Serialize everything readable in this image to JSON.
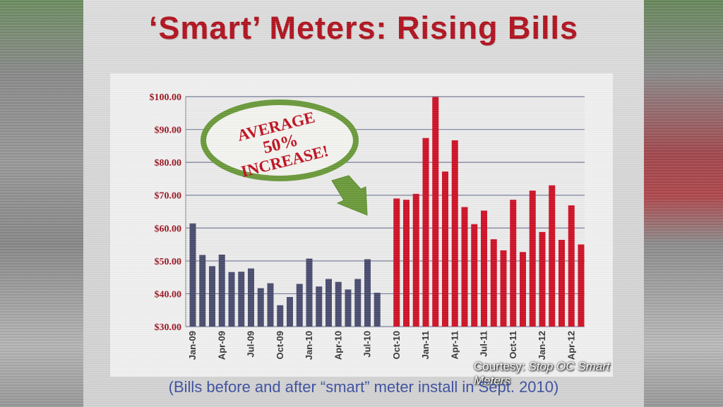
{
  "slide": {
    "title": "‘Smart’ Meters: Rising Bills",
    "caption": "(Bills before and after “smart” meter install in Sept. 2010)",
    "courtesy_label": "Courtesy:",
    "courtesy_source": "Stop OC Smart Meters"
  },
  "callout": {
    "line1": "AVERAGE",
    "line2": "50%",
    "line3": "INCREASE!"
  },
  "colors": {
    "before_bar": "#4a4c6e",
    "after_bar": "#cf1126",
    "axis_label": "#9a1420",
    "callout_ring": "#6a9a3a",
    "callout_text": "#c0101e",
    "caption": "#3c4fa0"
  },
  "chart_data": {
    "type": "bar",
    "ylim": [
      30,
      100
    ],
    "y_ticks": [
      "$30.00",
      "$40.00",
      "$50.00",
      "$60.00",
      "$70.00",
      "$80.00",
      "$90.00",
      "$100.00"
    ],
    "grid": true,
    "x_tick_labels": [
      {
        "index": 0,
        "label": "Jan-09"
      },
      {
        "index": 3,
        "label": "Apr-09"
      },
      {
        "index": 6,
        "label": "Jul-09"
      },
      {
        "index": 9,
        "label": "Oct-09"
      },
      {
        "index": 12,
        "label": "Jan-10"
      },
      {
        "index": 15,
        "label": "Apr-10"
      },
      {
        "index": 18,
        "label": "Jul-10"
      },
      {
        "index": 21,
        "label": "Oct-10"
      },
      {
        "index": 24,
        "label": "Jan-11"
      },
      {
        "index": 27,
        "label": "Apr-11"
      },
      {
        "index": 30,
        "label": "Jul-11"
      },
      {
        "index": 33,
        "label": "Oct-11"
      },
      {
        "index": 36,
        "label": "Jan-12"
      },
      {
        "index": 39,
        "label": "Apr-12"
      }
    ],
    "categories": [
      "Jan-09",
      "Feb-09",
      "Mar-09",
      "Apr-09",
      "May-09",
      "Jun-09",
      "Jul-09",
      "Aug-09",
      "Sep-09",
      "Oct-09",
      "Nov-09",
      "Dec-09",
      "Jan-10",
      "Feb-10",
      "Mar-10",
      "Apr-10",
      "May-10",
      "Jun-10",
      "Jul-10",
      "Aug-10",
      "Sep-10",
      "Oct-10",
      "Nov-10",
      "Dec-10",
      "Jan-11",
      "Feb-11",
      "Mar-11",
      "Apr-11",
      "May-11",
      "Jun-11",
      "Jul-11",
      "Aug-11",
      "Sep-11",
      "Oct-11",
      "Nov-11",
      "Dec-11",
      "Jan-12",
      "Feb-12",
      "Mar-12",
      "Apr-12",
      "May-12"
    ],
    "values": [
      61.4,
      51.8,
      48.4,
      51.9,
      46.6,
      46.7,
      47.7,
      41.7,
      43.2,
      36.5,
      39.0,
      43.0,
      50.7,
      42.2,
      44.5,
      43.6,
      41.3,
      44.5,
      50.5,
      40.3,
      null,
      69.0,
      68.6,
      70.4,
      87.4,
      99.9,
      77.2,
      86.7,
      66.4,
      61.2,
      65.3,
      56.6,
      53.2,
      68.6,
      52.7,
      71.4,
      58.8,
      73.0,
      56.4,
      66.9,
      55.0
    ],
    "before_count": 21
  }
}
